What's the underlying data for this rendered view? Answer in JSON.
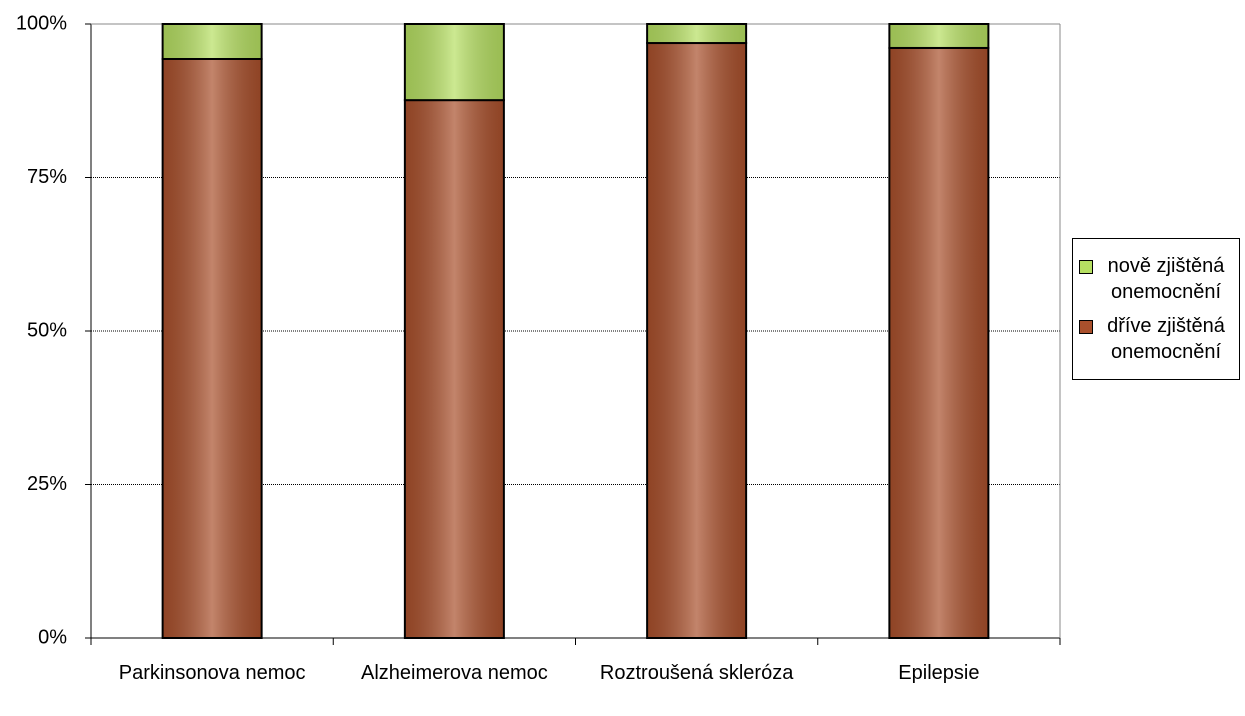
{
  "chart_data": {
    "type": "bar",
    "stacked": true,
    "categories": [
      "Parkinsonova nemoc",
      "Alzheimerova nemoc",
      "Roztroušená skleróza",
      "Epilepsie"
    ],
    "series": [
      {
        "name": "dříve zjištěná onemocnění",
        "color": "#a9502c",
        "values": [
          94.3,
          87.6,
          96.9,
          96.1
        ]
      },
      {
        "name": "nově zjištěná onemocnění",
        "color": "#b6df62",
        "values": [
          5.7,
          12.4,
          3.1,
          3.9
        ]
      }
    ],
    "ylim": [
      0,
      100
    ],
    "yticks": [
      {
        "value": 0,
        "label": "0%"
      },
      {
        "value": 25,
        "label": "25%"
      },
      {
        "value": 50,
        "label": "50%"
      },
      {
        "value": 75,
        "label": "75%"
      },
      {
        "value": 100,
        "label": "100%"
      }
    ],
    "grid": true
  }
}
